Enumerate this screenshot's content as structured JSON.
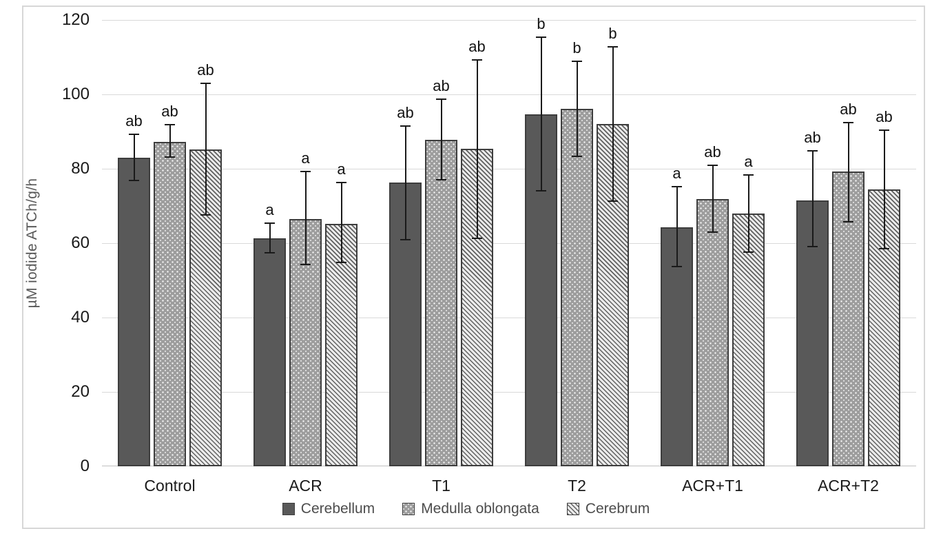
{
  "chart_data": {
    "type": "bar",
    "title": "",
    "ylabel": "µM iodide ATCh/g/h",
    "xlabel": "",
    "ylim": [
      0,
      120
    ],
    "yticks": [
      0,
      20,
      40,
      60,
      80,
      100,
      120
    ],
    "grid": true,
    "legend_position": "bottom",
    "categories": [
      "Control",
      "ACR",
      "T1",
      "T2",
      "ACR+T1",
      "ACR+T2"
    ],
    "series": [
      {
        "name": "Cerebellum",
        "pattern": "solid-dark-gray",
        "values": [
          83.0,
          61.3,
          76.3,
          94.7,
          64.3,
          71.4
        ],
        "error_low": [
          76.7,
          57.2,
          60.8,
          73.9,
          53.6,
          58.8
        ],
        "error_high": [
          89.5,
          65.6,
          91.7,
          115.5,
          75.4,
          85.0
        ],
        "letters": [
          "ab",
          "a",
          "ab",
          "b",
          "a",
          "ab"
        ]
      },
      {
        "name": "Medulla oblongata",
        "pattern": "gray-white-dots",
        "values": [
          87.3,
          66.5,
          87.8,
          96.2,
          71.9,
          79.3
        ],
        "error_low": [
          83.0,
          54.1,
          76.9,
          83.2,
          62.8,
          65.6
        ],
        "error_high": [
          92.0,
          79.4,
          98.9,
          109.1,
          81.1,
          92.6
        ],
        "letters": [
          "ab",
          "a",
          "ab",
          "b",
          "ab",
          "ab"
        ]
      },
      {
        "name": "Cerebrum",
        "pattern": "diagonal-hatch",
        "values": [
          85.2,
          65.2,
          85.3,
          92.1,
          68.0,
          74.4
        ],
        "error_low": [
          67.5,
          54.6,
          61.2,
          71.2,
          57.5,
          58.4
        ],
        "error_high": [
          103.1,
          76.5,
          109.4,
          113.0,
          78.6,
          90.6
        ],
        "letters": [
          "ab",
          "a",
          "ab",
          "b",
          "a",
          "ab"
        ]
      }
    ],
    "legend": [
      "Cerebellum",
      "Medulla oblongata",
      "Cerebrum"
    ]
  },
  "colors": {
    "bar-dark": "#595959",
    "bar-border": "#3d3d3d",
    "pattern-base": "#9d9d9d",
    "gridline": "#d9d9d9",
    "axis-line": "#bfbfbf",
    "frame-border": "#d7d7d7",
    "tick-text": "#1a1a1a",
    "letter-text": "#141414",
    "legend-text": "#4d4d4d",
    "ytitle-text": "#5a5a5a",
    "error-bar": "#1a1a1a"
  }
}
